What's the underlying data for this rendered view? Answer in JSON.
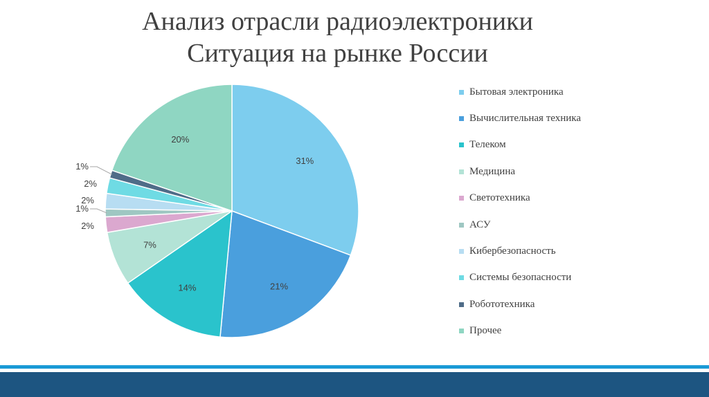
{
  "title": {
    "line1": "Анализ отрасли радиоэлектроники",
    "line2": "Ситуация на рынке России"
  },
  "colors": {
    "title_text": "#404040",
    "label_text": "#404040",
    "bottom_stripe": "#1a9ad6",
    "bottom_bar": "#1d5581"
  },
  "chart_data": {
    "type": "pie",
    "title": "",
    "legend_position": "right",
    "start_angle_deg": 0,
    "direction": "clockwise",
    "slices": [
      {
        "label": "Бытовая электроника",
        "value": 31,
        "display": "31%",
        "color": "#7dcdee"
      },
      {
        "label": "Вычислительная техника",
        "value": 21,
        "display": "21%",
        "color": "#4a9fdd"
      },
      {
        "label": "Телеком",
        "value": 14,
        "display": "14%",
        "color": "#2ac3cc"
      },
      {
        "label": "Медицина",
        "value": 7,
        "display": "7%",
        "color": "#b3e3d6"
      },
      {
        "label": "Светотехника",
        "value": 2,
        "display": "2%",
        "color": "#dba8cf"
      },
      {
        "label": "АСУ",
        "value": 1,
        "display": "1%",
        "color": "#9ec7c2"
      },
      {
        "label": "Кибербезопасность",
        "value": 2,
        "display": "2%",
        "color": "#b7ddf2"
      },
      {
        "label": "Системы безопасности",
        "value": 2,
        "display": "2%",
        "color": "#6fdbe4"
      },
      {
        "label": "Робототехника",
        "value": 1,
        "display": "1%",
        "color": "#4f6c88"
      },
      {
        "label": "Прочее",
        "value": 20,
        "display": "20%",
        "color": "#8fd6c2"
      }
    ]
  }
}
